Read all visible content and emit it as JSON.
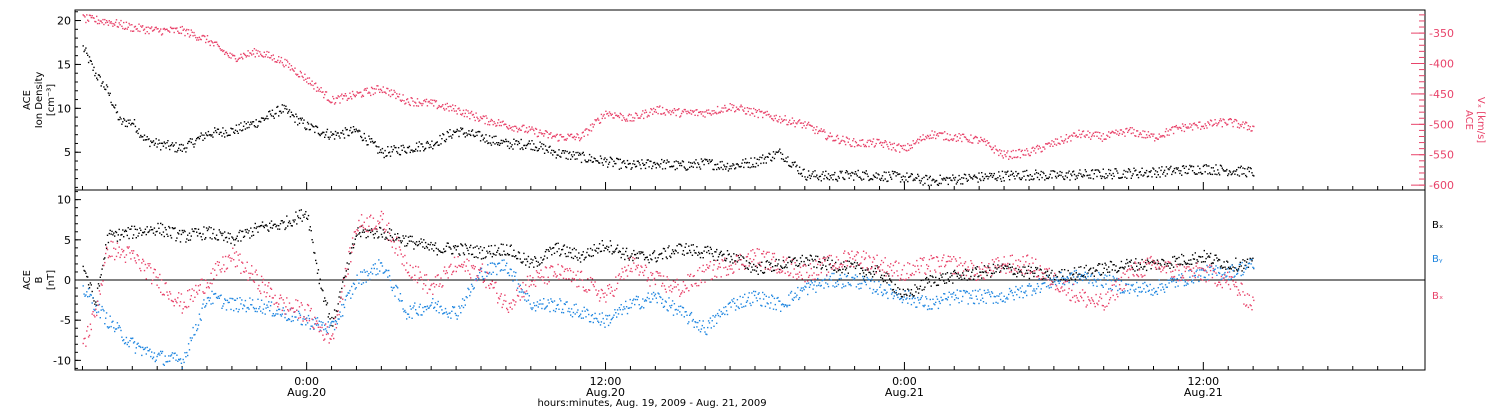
{
  "colors": {
    "black": "#000000",
    "pink": "#e8436a",
    "blue": "#1f86e0"
  },
  "xaxis": {
    "label": "hours:minutes, Aug. 19, 2009 - Aug. 21, 2009",
    "ticks": [
      {
        "time": "0:00",
        "date": "Aug.20",
        "hour": 24
      },
      {
        "time": "12:00",
        "date": "Aug.20",
        "hour": 36
      },
      {
        "time": "0:00",
        "date": "Aug.21",
        "hour": 48
      },
      {
        "time": "12:00",
        "date": "Aug.21",
        "hour": 60
      }
    ],
    "range": [
      14.7,
      68.9
    ]
  },
  "panel1": {
    "left_label_1": "ACE",
    "left_label_2": "Ion Density",
    "left_label_3": "[cm⁻³]",
    "right_label_1": "ACE",
    "right_label_2": "Vₓ [km/s]",
    "left_ticks": [
      "5",
      "10",
      "15",
      "20"
    ],
    "right_ticks": [
      "-350",
      "-400",
      "-450",
      "-500",
      "-550",
      "-600"
    ]
  },
  "panel2": {
    "left_label_1": "ACE",
    "left_label_2": "B",
    "left_label_3": "[nT]",
    "ticks": [
      "10",
      "5",
      "0",
      "-5",
      "-10"
    ],
    "legend": [
      "Bₓ",
      "Bᵧ",
      "Bₓ"
    ]
  },
  "chart_data": [
    {
      "type": "scatter",
      "panel": "top",
      "xlabel": "hours:minutes, Aug. 19, 2009 - Aug. 21, 2009",
      "ylabel_left": "ACE Ion Density [cm^-3]",
      "ylabel_right": "ACE Vx [km/s]",
      "xlim_hours_from_aug19_0000": [
        14.7,
        68.9
      ],
      "ylim_left": [
        0.7,
        21.2
      ],
      "ylim_right": [
        -608,
        -312
      ],
      "grid": false,
      "series": [
        {
          "name": "Ion Density",
          "axis": "left",
          "color": "#000000",
          "x": [
            15.0,
            15.5,
            16.0,
            16.5,
            17.0,
            17.5,
            18.0,
            19.0,
            20.0,
            21.0,
            22.0,
            23.0,
            24.0,
            24.5,
            25.0,
            26.0,
            27.0,
            28.0,
            29.0,
            30.0,
            31.0,
            32.0,
            33.0,
            34.0,
            35.0,
            36.0,
            37.0,
            38.0,
            39.0,
            40.0,
            41.0,
            42.0,
            43.0,
            44.0,
            45.0,
            46.0,
            47.0,
            48.0,
            49.0,
            50.0,
            51.0,
            52.0,
            53.0,
            54.0,
            55.0,
            56.0,
            57.0,
            58.0,
            59.0,
            60.0,
            61.0,
            62.0
          ],
          "y": [
            17,
            14,
            12,
            8.5,
            8.5,
            6.5,
            6,
            5.5,
            7.2,
            7.5,
            8.5,
            10,
            8,
            7.5,
            7,
            7.5,
            5,
            5.5,
            6,
            7.5,
            6.8,
            6,
            6,
            5,
            4.5,
            4,
            3.5,
            3.8,
            3.5,
            3.8,
            3.5,
            4,
            5,
            2.5,
            2.3,
            2.5,
            2.4,
            2.2,
            1.8,
            2,
            2.2,
            2.4,
            2.5,
            2.4,
            2.5,
            2.6,
            2.7,
            2.8,
            3.0,
            3.2,
            3.0,
            2.8
          ]
        },
        {
          "name": "Vx",
          "axis": "right",
          "color": "#e8436a",
          "x": [
            15.0,
            16.0,
            17.0,
            18.0,
            19.0,
            20.0,
            21.0,
            22.0,
            23.0,
            24.0,
            25.0,
            26.0,
            27.0,
            28.0,
            29.0,
            30.0,
            31.0,
            32.0,
            33.0,
            34.0,
            35.0,
            36.0,
            37.0,
            38.0,
            39.0,
            40.0,
            41.0,
            42.0,
            43.0,
            44.0,
            45.0,
            46.0,
            47.0,
            48.0,
            49.0,
            50.0,
            51.0,
            52.0,
            53.0,
            54.0,
            55.0,
            56.0,
            57.0,
            58.0,
            59.0,
            60.0,
            61.0,
            62.0
          ],
          "y": [
            -325,
            -330,
            -340,
            -345,
            -345,
            -360,
            -390,
            -380,
            -395,
            -425,
            -460,
            -450,
            -440,
            -460,
            -465,
            -475,
            -490,
            -500,
            -510,
            -520,
            -520,
            -480,
            -490,
            -475,
            -480,
            -480,
            -470,
            -480,
            -490,
            -500,
            -520,
            -530,
            -530,
            -540,
            -515,
            -520,
            -525,
            -550,
            -545,
            -530,
            -515,
            -520,
            -510,
            -520,
            -505,
            -500,
            -495,
            -505
          ]
        }
      ]
    },
    {
      "type": "scatter",
      "panel": "bottom",
      "ylabel": "ACE B [nT]",
      "ylim": [
        -11.2,
        11.2
      ],
      "grid": false,
      "series": [
        {
          "name": "Bx",
          "color": "#000000",
          "x": [
            15.0,
            15.5,
            16.0,
            17.0,
            18.0,
            19.0,
            20.0,
            21.0,
            22.0,
            23.0,
            24.0,
            24.5,
            25.0,
            26.0,
            27.0,
            28.0,
            29.0,
            30.0,
            31.0,
            32.0,
            33.0,
            34.0,
            35.0,
            36.0,
            37.0,
            38.0,
            39.0,
            40.0,
            41.0,
            42.0,
            43.0,
            44.0,
            45.0,
            46.0,
            47.0,
            48.0,
            49.0,
            50.0,
            51.0,
            52.0,
            53.0,
            54.0,
            55.0,
            56.0,
            57.0,
            58.0,
            59.0,
            60.0,
            61.0,
            62.0
          ],
          "y": [
            2,
            -3,
            5.5,
            6,
            6.5,
            5.5,
            6,
            5,
            6.5,
            7,
            8.5,
            0,
            -5.5,
            6,
            6,
            5,
            4,
            4,
            3.5,
            4,
            2,
            4,
            3,
            4.5,
            3,
            3,
            4,
            3.5,
            3,
            1.5,
            2,
            2.5,
            2,
            1.5,
            1,
            -2,
            0,
            0.5,
            1,
            1.5,
            1,
            0.5,
            1,
            1.5,
            2,
            2,
            2.5,
            3,
            2,
            2
          ]
        },
        {
          "name": "By",
          "color": "#1f86e0",
          "x": [
            15.0,
            15.5,
            16.0,
            17.0,
            18.0,
            19.0,
            20.0,
            21.0,
            22.0,
            23.0,
            24.0,
            24.5,
            25.0,
            26.0,
            27.0,
            28.0,
            29.0,
            30.0,
            31.0,
            32.0,
            33.0,
            34.0,
            35.0,
            36.0,
            37.0,
            38.0,
            39.0,
            40.0,
            41.0,
            42.0,
            43.0,
            44.0,
            45.0,
            46.0,
            47.0,
            48.0,
            49.0,
            50.0,
            51.0,
            52.0,
            53.0,
            54.0,
            55.0,
            56.0,
            57.0,
            58.0,
            59.0,
            60.0,
            61.0,
            62.0
          ],
          "y": [
            -1,
            -3,
            -5,
            -8,
            -9.5,
            -10,
            -2,
            -3,
            -3,
            -4,
            -5,
            -5.5,
            -6,
            0,
            2,
            -4,
            -3,
            -4,
            1,
            2,
            -3,
            -3,
            -4,
            -5,
            -3,
            -2,
            -4,
            -6,
            -3,
            -2,
            -3,
            -1,
            0,
            0,
            -1,
            -2,
            -3,
            -2,
            -2,
            -2,
            -1,
            0,
            0.5,
            0,
            -1,
            -1,
            0,
            1,
            1,
            2
          ]
        },
        {
          "name": "Bz",
          "color": "#e8436a",
          "x": [
            15.0,
            15.5,
            16.0,
            17.0,
            18.0,
            19.0,
            20.0,
            21.0,
            22.0,
            23.0,
            24.0,
            24.5,
            25.0,
            26.0,
            27.0,
            28.0,
            29.0,
            30.0,
            31.0,
            32.0,
            33.0,
            34.0,
            35.0,
            36.0,
            37.0,
            38.0,
            39.0,
            40.0,
            41.0,
            42.0,
            43.0,
            44.0,
            45.0,
            46.0,
            47.0,
            48.0,
            49.0,
            50.0,
            51.0,
            52.0,
            53.0,
            54.0,
            55.0,
            56.0,
            57.0,
            58.0,
            59.0,
            60.0,
            61.0,
            62.0
          ],
          "y": [
            -8,
            -4,
            4,
            3,
            0,
            -3,
            0,
            3,
            0,
            -3,
            -4,
            -6,
            -7,
            7,
            7.5,
            2,
            -1,
            2,
            1,
            -3,
            0,
            1,
            0,
            -2,
            2,
            0,
            -1,
            1,
            2,
            3,
            2,
            1,
            2,
            3,
            2,
            1,
            2,
            2,
            1,
            2,
            2,
            0,
            -2,
            -3,
            1,
            2,
            1,
            1,
            0,
            -3
          ]
        }
      ]
    }
  ]
}
